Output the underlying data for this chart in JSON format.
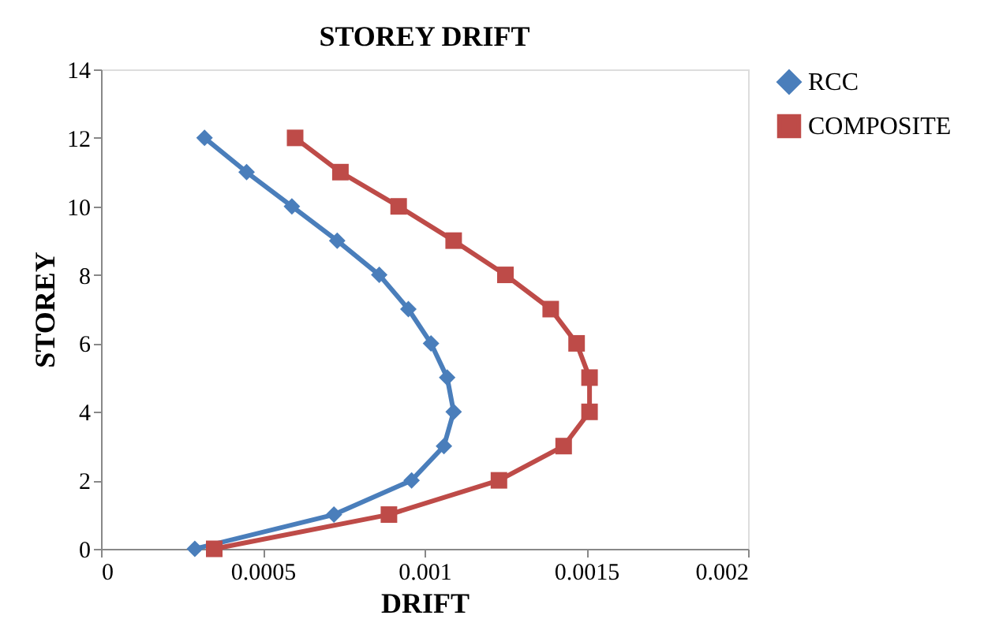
{
  "chart_data": {
    "type": "line",
    "title": "STOREY DRIFT",
    "xlabel": "DRIFT",
    "ylabel": "STOREY",
    "series": [
      {
        "name": "RCC",
        "color": "#4a7ebb",
        "marker": "diamond",
        "x": [
          0.00029,
          0.00072,
          0.00096,
          0.00106,
          0.00109,
          0.00107,
          0.00102,
          0.00095,
          0.00086,
          0.00073,
          0.00059,
          0.00045,
          0.00032
        ],
        "values": [
          0,
          1,
          2,
          3,
          4,
          5,
          6,
          7,
          8,
          9,
          10,
          11,
          12
        ]
      },
      {
        "name": "COMPOSITE",
        "color": "#be4b48",
        "marker": "square",
        "x": [
          0.00035,
          0.00089,
          0.00123,
          0.00143,
          0.00151,
          0.00151,
          0.00147,
          0.00139,
          0.00125,
          0.00109,
          0.00092,
          0.00074,
          0.0006
        ],
        "values": [
          0,
          1,
          2,
          3,
          4,
          5,
          6,
          7,
          8,
          9,
          10,
          11,
          12
        ]
      }
    ],
    "xlim": [
      0,
      0.002
    ],
    "xticks": [
      0,
      0.0005,
      0.001,
      0.0015,
      0.002
    ],
    "ylim": [
      0,
      14
    ],
    "yticks": [
      0,
      2,
      4,
      6,
      8,
      10,
      12,
      14
    ],
    "grid": false,
    "legend": "right",
    "line_style": "solid"
  }
}
